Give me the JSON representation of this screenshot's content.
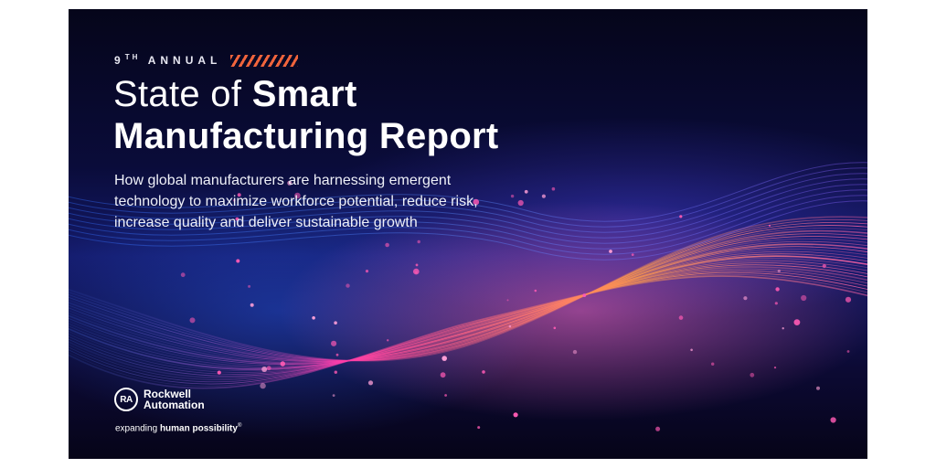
{
  "kicker": {
    "ordinal": "9",
    "ordinal_suffix": "TH",
    "word": "ANNUAL",
    "accent_color": "#f0643c"
  },
  "title": {
    "part1": "State of ",
    "part2": "Smart",
    "line2": "Manufacturing Report"
  },
  "subtitle": "How global manufacturers are harnessing emergent technology to maximize workforce potential, reduce risk, increase quality and deliver sustainable growth",
  "logo": {
    "badge": "RA",
    "line1": "Rockwell",
    "line2": "Automation"
  },
  "tagline": {
    "regular": "expanding ",
    "bold": "human possibility",
    "mark": "®"
  },
  "colors": {
    "background_dark": "#0a0c3a",
    "wave_pink": "#ff3ca8",
    "wave_orange": "#ff9a4a",
    "wave_blue": "#3c7cff"
  }
}
